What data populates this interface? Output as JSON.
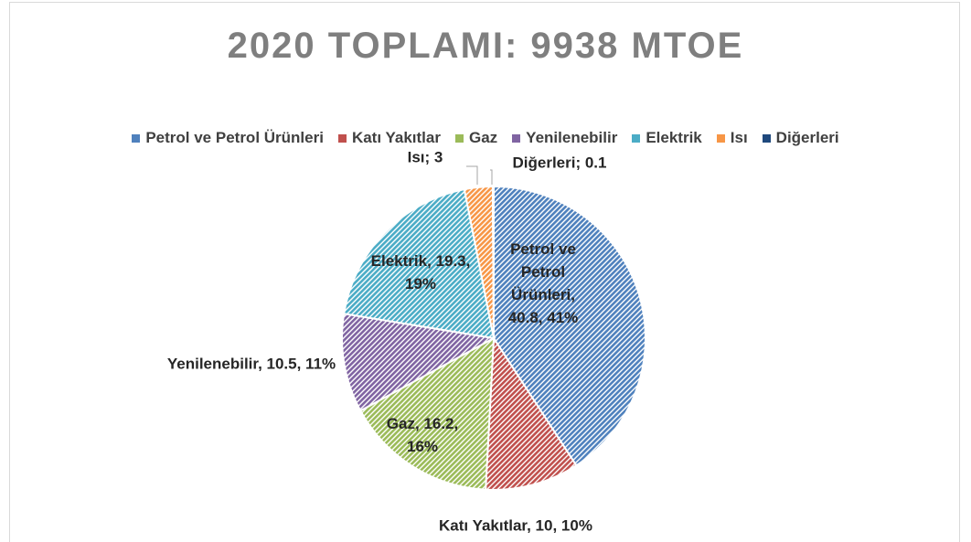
{
  "chart_data": {
    "type": "pie",
    "title": "2020 TOPLAMI: 9938 MTOE",
    "categories": [
      "Petrol ve Petrol Ürünleri",
      "Katı Yakıtlar",
      "Gaz",
      "Yenilenebilir",
      "Elektrik",
      "Isı",
      "Diğerleri"
    ],
    "values": [
      40.8,
      10,
      16.2,
      10.5,
      19.3,
      3,
      0.1
    ],
    "value_labels": [
      "Petrol ve Petrol Ürünleri, 40.8, 41%",
      "Katı Yakıtlar, 10, 10%",
      "Gaz, 16.2, 16%",
      "Yenilenebilir, 10.5, 11%",
      "Elektrik, 19.3, 19%",
      "Isı; 3",
      "Diğerleri; 0.1"
    ],
    "colors": [
      "#4f81bd",
      "#c0504d",
      "#9bbb59",
      "#8064a2",
      "#4bacc6",
      "#f79646",
      "#1f497d"
    ],
    "legend": "top"
  }
}
